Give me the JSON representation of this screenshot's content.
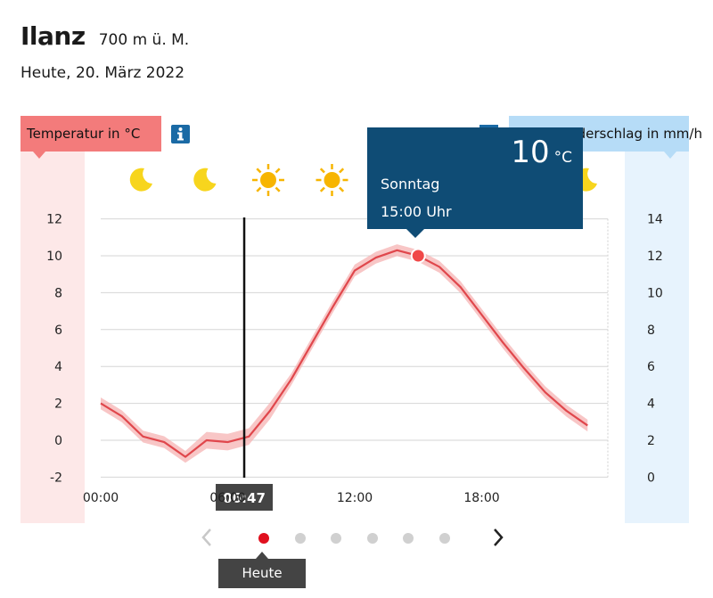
{
  "header": {
    "city": "Ilanz",
    "altitude": "700 m ü. M.",
    "date": "Heute, 20. März 2022"
  },
  "labels": {
    "temperature": "Temperatur in °C",
    "precipitation": "Niederschlag in mm/h"
  },
  "tooltip": {
    "temp_value": "10",
    "temp_unit": "°C",
    "day": "Sonntag",
    "time": "15:00 Uhr"
  },
  "now_marker": {
    "label": "06:47",
    "hour": 6.78
  },
  "pager": {
    "today_label": "Heute",
    "dots": 6,
    "active": 0
  },
  "colors": {
    "temp_accent": "#f37b7b",
    "precip_accent": "#b6dcf7",
    "line": "#e0474c",
    "tooltip_bg": "#0f4c75"
  },
  "chart_data": {
    "type": "line",
    "x_unit": "hour",
    "x_ticks": [
      "00:00",
      "06:00",
      "12:00",
      "18:00"
    ],
    "x_range": [
      0,
      23
    ],
    "y_left": {
      "label": "Temperatur in °C",
      "ticks": [
        12,
        10,
        8,
        6,
        4,
        2,
        0,
        -2
      ],
      "range": [
        -2,
        12
      ]
    },
    "y_right": {
      "label": "Niederschlag in mm/h",
      "ticks": [
        14,
        12,
        10,
        8,
        6,
        4,
        2,
        0
      ],
      "range": [
        0,
        14
      ]
    },
    "series": [
      {
        "x": [
          0,
          1,
          2,
          3,
          4,
          5,
          6,
          7,
          8,
          9,
          10,
          11,
          12,
          13,
          14,
          15,
          16,
          17,
          18,
          19,
          20,
          21,
          22,
          23
        ],
        "y": [
          2,
          1.3,
          0.2,
          -0.1,
          -0.9,
          0,
          -0.1,
          0.2,
          1.6,
          3.3,
          5.3,
          7.3,
          9.2,
          9.9,
          10.3,
          10,
          9.4,
          8.3,
          6.8,
          5.3,
          3.9,
          2.6,
          1.6,
          0.8
        ]
      }
    ],
    "highlight": {
      "x": 15,
      "y": 10
    },
    "weather_icons": [
      "moon-icon",
      "moon-icon",
      "sun-icon",
      "sun-icon",
      "moon-icon"
    ],
    "grid": true
  }
}
